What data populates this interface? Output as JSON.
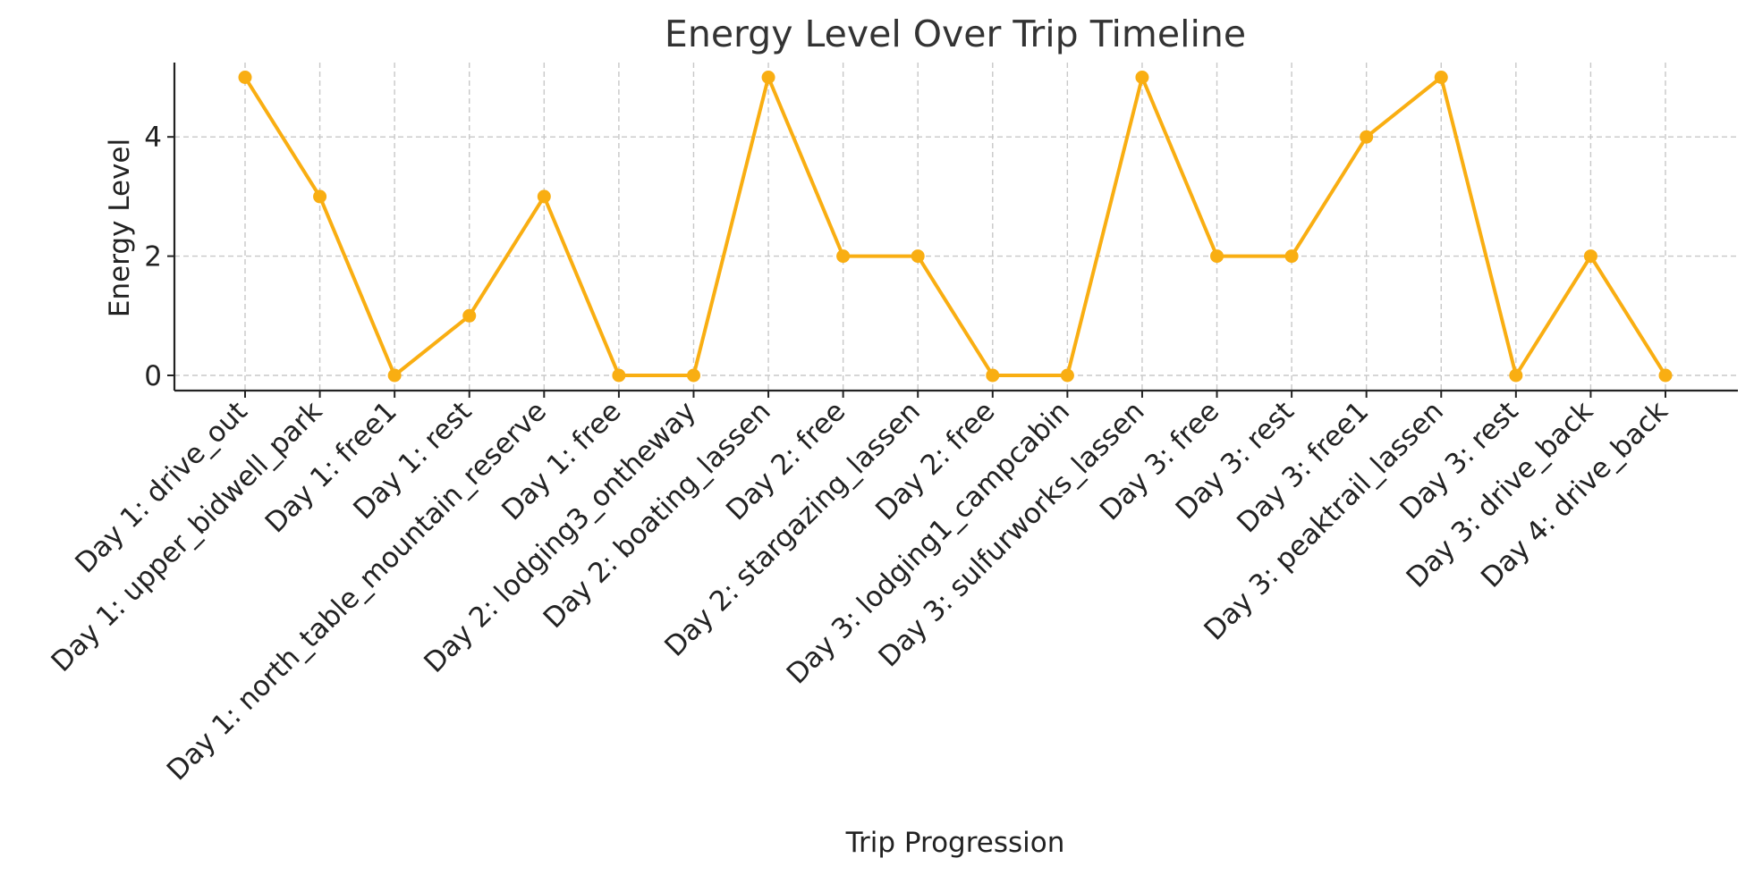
{
  "chart_data": {
    "type": "line",
    "title": "Energy Level Over Trip Timeline",
    "xlabel": "Trip Progression",
    "ylabel": "Energy Level",
    "categories": [
      "Day 1: drive_out",
      "Day 1: upper_bidwell_park",
      "Day 1: free1",
      "Day 1: rest",
      "Day 1: north_table_mountain_reserve",
      "Day 1: free",
      "Day 2: lodging3_ontheway",
      "Day 2: boating_lassen",
      "Day 2: free",
      "Day 2: stargazing_lassen",
      "Day 2: free",
      "Day 3: lodging1_campcabin",
      "Day 3: sulfurworks_lassen",
      "Day 3: free",
      "Day 3: rest",
      "Day 3: free1",
      "Day 3: peaktrail_lassen",
      "Day 3: rest",
      "Day 3: drive_back",
      "Day 4: drive_back"
    ],
    "series": [
      {
        "values": [
          5,
          3,
          0,
          1,
          3,
          0,
          0,
          5,
          2,
          2,
          0,
          0,
          5,
          2,
          2,
          4,
          5,
          0,
          2,
          0
        ],
        "color": "#F9AE12",
        "marker": "circle"
      }
    ],
    "yticks": [
      "0",
      "2",
      "4"
    ],
    "ylim": [
      -0.25,
      5.25
    ],
    "grid": true,
    "legend": "none"
  }
}
